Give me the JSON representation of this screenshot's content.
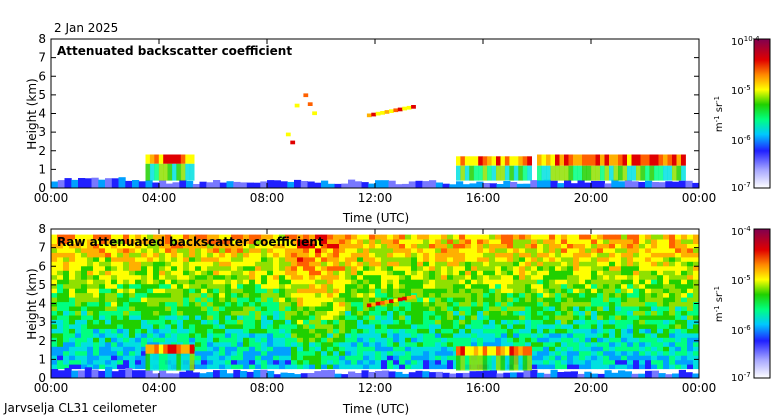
{
  "header": {
    "date": "2 Jan 2025"
  },
  "footer": {
    "site": "Jarvselja CL31 ceilometer"
  },
  "chart_data": [
    {
      "type": "heatmap",
      "title": "Attenuated backscatter coefficient",
      "xlabel": "Time (UTC)",
      "ylabel": "Height (km)",
      "x_range": [
        0,
        24
      ],
      "y_range": [
        0,
        8
      ],
      "x_ticks": [
        "00:00",
        "04:00",
        "08:00",
        "12:00",
        "16:00",
        "20:00",
        "00:00"
      ],
      "y_ticks": [
        "0",
        "1",
        "2",
        "3",
        "4",
        "5",
        "6",
        "7",
        "8"
      ],
      "colorbar": {
        "scale": "log",
        "range": [
          1e-07,
          0.0001
        ],
        "ticks": [
          "10-7",
          "10-6",
          "10-5",
          "10-4"
        ],
        "label": "m-1 sr-1"
      },
      "features": [
        {
          "name": "Boundary layer aerosol",
          "t": [
            0,
            24
          ],
          "h": [
            0,
            0.5
          ]
        },
        {
          "name": "Low cloud",
          "t": [
            3.5,
            5.3
          ],
          "h": [
            1.3,
            1.8
          ]
        },
        {
          "name": "Low cloud",
          "t": [
            15,
            17.8
          ],
          "h": [
            1.2,
            1.7
          ]
        },
        {
          "name": "Low cloud",
          "t": [
            18,
            23.5
          ],
          "h": [
            1.2,
            1.8
          ]
        },
        {
          "name": "Mid-level layer",
          "t": [
            11.7,
            13.5
          ],
          "h": [
            3.8,
            4.3
          ]
        },
        {
          "name": "Scattered layers",
          "t": [
            8.7,
            10
          ],
          "h": [
            2.3,
            5.0
          ]
        }
      ]
    },
    {
      "type": "heatmap",
      "title": "Raw attenuated backscatter coefficient",
      "xlabel": "Time (UTC)",
      "ylabel": "Height (km)",
      "x_range": [
        0,
        24
      ],
      "y_range": [
        0,
        8
      ],
      "x_ticks": [
        "00:00",
        "04:00",
        "08:00",
        "12:00",
        "16:00",
        "20:00",
        "00:00"
      ],
      "y_ticks": [
        "0",
        "1",
        "2",
        "3",
        "4",
        "5",
        "6",
        "7",
        "8"
      ],
      "colorbar": {
        "scale": "log",
        "range": [
          1e-07,
          0.0001
        ],
        "ticks": [
          "10-7",
          "10-6",
          "10-5",
          "10-4"
        ],
        "label": "m-1 sr-1"
      },
      "features": [
        {
          "name": "Noise background",
          "t": [
            0,
            24
          ],
          "h": [
            0.5,
            7.7
          ]
        },
        {
          "name": "Low cloud",
          "t": [
            3.5,
            5.3
          ],
          "h": [
            1.3,
            1.8
          ]
        },
        {
          "name": "Low cloud",
          "t": [
            15,
            17.8
          ],
          "h": [
            1.2,
            1.7
          ]
        },
        {
          "name": "Mid-level layer",
          "t": [
            11.7,
            13.5
          ],
          "h": [
            3.8,
            4.3
          ]
        }
      ]
    }
  ]
}
